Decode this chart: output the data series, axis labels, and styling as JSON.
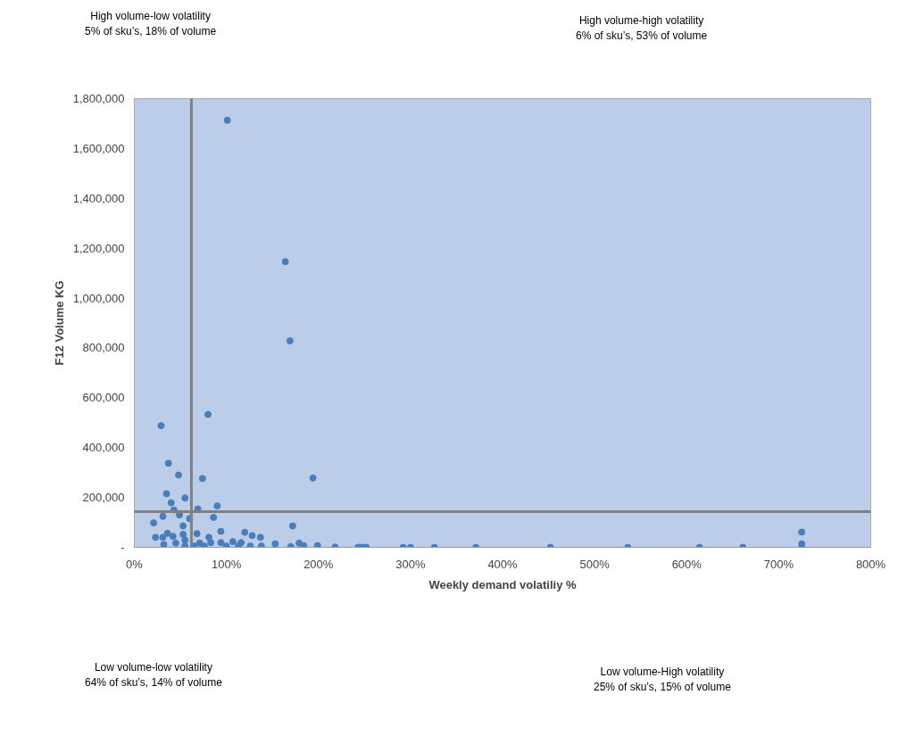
{
  "chart_data": {
    "type": "scatter",
    "xlabel": "Weekly demand volatiliy %",
    "ylabel": "F12 Volume KG",
    "x": [
      29,
      80,
      37,
      48,
      74,
      194,
      35,
      55,
      40,
      90,
      43,
      69,
      49,
      31,
      60,
      86,
      21,
      172,
      53,
      94,
      120,
      128,
      137,
      23,
      36,
      42,
      53,
      68,
      81,
      31,
      32,
      45,
      55,
      71,
      83,
      94,
      107,
      116,
      138,
      153,
      170,
      179,
      184,
      199,
      218,
      245,
      55,
      65,
      76,
      100,
      113,
      126,
      101,
      164,
      169,
      243,
      248,
      252,
      292,
      300,
      326,
      371,
      452,
      536,
      614,
      661,
      725,
      725,
      725
    ],
    "values": [
      488000,
      533000,
      337000,
      290000,
      276000,
      278000,
      215000,
      198000,
      179000,
      166000,
      150000,
      154000,
      130000,
      124000,
      115000,
      120000,
      98000,
      86000,
      86000,
      64000,
      60000,
      47000,
      40000,
      40000,
      56000,
      44000,
      52000,
      55000,
      40000,
      40000,
      11000,
      17000,
      29000,
      17000,
      19000,
      19000,
      23000,
      19000,
      5000,
      14000,
      3000,
      17000,
      7000,
      7000,
      1000,
      0,
      5000,
      5000,
      5000,
      5000,
      5000,
      5000,
      1713000,
      1146000,
      828000,
      0,
      0,
      0,
      0,
      0,
      0,
      0,
      0,
      0,
      0,
      0,
      0,
      61000,
      14000
    ],
    "color": "#4a7ebb",
    "marker": "circle",
    "grid": false,
    "xlim": [
      0,
      800
    ],
    "ylim": [
      0,
      1800000
    ],
    "xticks": [
      {
        "value": 0,
        "label": "0%"
      },
      {
        "value": 100,
        "label": "100%"
      },
      {
        "value": 200,
        "label": "200%"
      },
      {
        "value": 300,
        "label": "300%"
      },
      {
        "value": 400,
        "label": "400%"
      },
      {
        "value": 500,
        "label": "500%"
      },
      {
        "value": 600,
        "label": "600%"
      },
      {
        "value": 700,
        "label": "700%"
      },
      {
        "value": 800,
        "label": "800%"
      }
    ],
    "yticks": [
      {
        "value": 0,
        "label": "-"
      },
      {
        "value": 200000,
        "label": "200,000"
      },
      {
        "value": 400000,
        "label": "400,000"
      },
      {
        "value": 600000,
        "label": "600,000"
      },
      {
        "value": 800000,
        "label": "800,000"
      },
      {
        "value": 1000000,
        "label": "1,000,000"
      },
      {
        "value": 1200000,
        "label": "1,200,000"
      },
      {
        "value": 1400000,
        "label": "1,400,000"
      },
      {
        "value": 1600000,
        "label": "1,600,000"
      },
      {
        "value": 1800000,
        "label": "1,800,000"
      }
    ],
    "ref_lines": [
      {
        "axis": "x",
        "value": 62,
        "color": "#808080"
      },
      {
        "axis": "y",
        "value": 143000,
        "color": "#808080"
      }
    ],
    "annotations": [
      "High volume-low volatility",
      "5% of sku’s, 18% of volume",
      "High volume-high volatility",
      "6% of sku’s, 53% of volume",
      "Low volume-low volatility",
      "64% of sku’s, 14% of volume",
      "Low volume-High volatility",
      "25% of sku’s, 15% of volume"
    ]
  }
}
